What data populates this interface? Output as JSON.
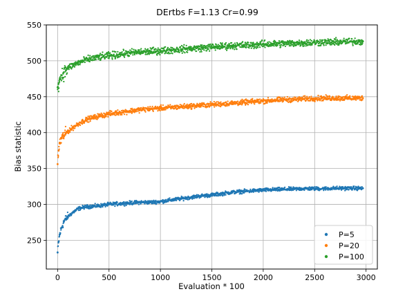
{
  "chart_data": {
    "type": "scatter",
    "title": "DErtbs F=1.13 Cr=0.99",
    "xlabel": "Evaluation * 100",
    "ylabel": "Bias statistic",
    "xlim": [
      -110,
      3110
    ],
    "ylim": [
      210,
      550
    ],
    "x_ticks": [
      0,
      500,
      1000,
      1500,
      2000,
      2500,
      3000
    ],
    "y_ticks": [
      250,
      300,
      350,
      400,
      450,
      500,
      550
    ],
    "grid": true,
    "legend_position": "lower-right",
    "series": [
      {
        "name": "P=5",
        "color": "#1f77b4",
        "x": [
          0,
          10,
          20,
          40,
          60,
          80,
          100,
          150,
          200,
          250,
          300,
          400,
          500,
          600,
          700,
          800,
          900,
          1000,
          1100,
          1200,
          1300,
          1400,
          1500,
          1600,
          1700,
          1800,
          1900,
          2000,
          2100,
          2200,
          2300,
          2400,
          2500,
          2600,
          2700,
          2800,
          2900,
          2970
        ],
        "y": [
          233,
          248,
          258,
          268,
          276,
          280,
          283,
          289,
          294,
          296,
          297,
          298,
          300,
          301,
          302,
          303,
          303,
          304,
          306,
          308,
          310,
          312,
          313,
          315,
          317,
          318,
          319,
          320,
          320.5,
          321,
          321.5,
          322,
          322,
          322,
          322.5,
          322.5,
          322.5,
          322.5
        ]
      },
      {
        "name": "P=20",
        "color": "#ff7f0e",
        "x": [
          0,
          10,
          20,
          40,
          60,
          80,
          100,
          150,
          200,
          250,
          300,
          400,
          500,
          600,
          700,
          800,
          900,
          1000,
          1100,
          1200,
          1300,
          1400,
          1500,
          1600,
          1700,
          1800,
          1900,
          2000,
          2100,
          2200,
          2300,
          2400,
          2500,
          2600,
          2700,
          2800,
          2900,
          2970
        ],
        "y": [
          356,
          375,
          386,
          392,
          396,
          399,
          402,
          407,
          412,
          416,
          419,
          423,
          426,
          428,
          430,
          432,
          433,
          434,
          435,
          436,
          437,
          438,
          439,
          440,
          441,
          442,
          443,
          444,
          445,
          446,
          446,
          447,
          447.5,
          448,
          448,
          448,
          448,
          448
        ]
      },
      {
        "name": "P=100",
        "color": "#2ca02c",
        "x": [
          0,
          10,
          20,
          40,
          60,
          80,
          100,
          150,
          200,
          250,
          300,
          400,
          500,
          600,
          700,
          800,
          900,
          1000,
          1100,
          1200,
          1300,
          1400,
          1500,
          1600,
          1700,
          1800,
          1900,
          2000,
          2100,
          2200,
          2300,
          2400,
          2500,
          2600,
          2700,
          2800,
          2900,
          2970
        ],
        "y": [
          463,
          469,
          474,
          480,
          484,
          487,
          490,
          494,
          497,
          500,
          502,
          505,
          507,
          509,
          511,
          512,
          513,
          514,
          515,
          516,
          517,
          518,
          519,
          520,
          521,
          521.5,
          522,
          523,
          523.5,
          524,
          524.5,
          525,
          525.5,
          526,
          526,
          526.5,
          527,
          527
        ]
      }
    ]
  }
}
